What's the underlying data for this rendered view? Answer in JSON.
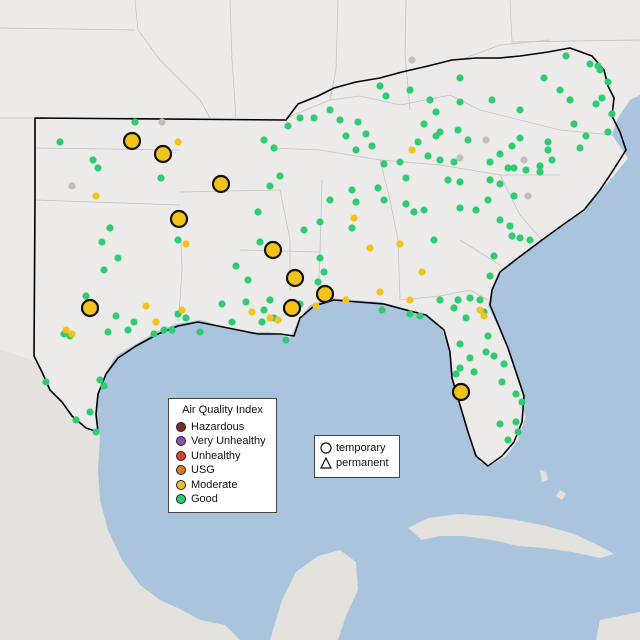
{
  "legend": {
    "title": "Air Quality Index",
    "categories": [
      {
        "label": "Hazardous",
        "color": "#7e2a2a"
      },
      {
        "label": "Very Unhealthy",
        "color": "#8f4fb0"
      },
      {
        "label": "Unhealthy",
        "color": "#e0402e"
      },
      {
        "label": "USG",
        "color": "#e07a1f"
      },
      {
        "label": "Moderate",
        "color": "#f2c31b"
      },
      {
        "label": "Good",
        "color": "#2ecc71"
      }
    ]
  },
  "site_legend": {
    "temporary": "temporary",
    "permanent": "permanent"
  },
  "colors": {
    "ocean": "#aac4de",
    "land": "#ecebe9",
    "no_data": "#bfbfbf"
  }
}
